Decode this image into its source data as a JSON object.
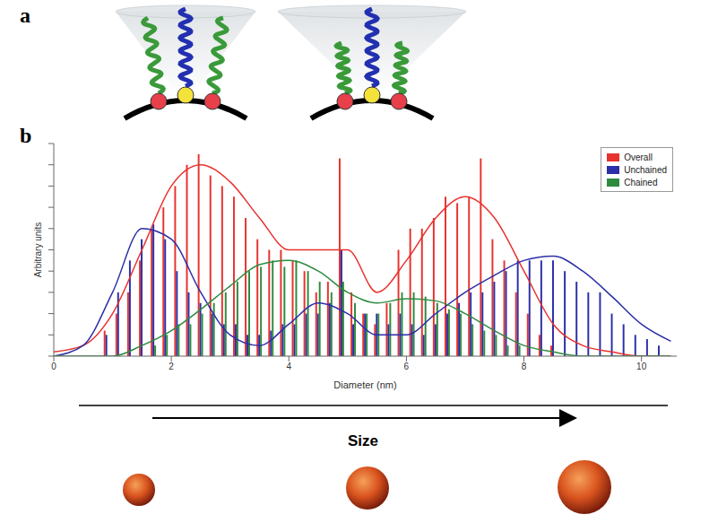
{
  "chart_data": {
    "type": "bar",
    "x_label": "Diameter (nm)",
    "y_label": "Arbitrary units",
    "x": [
      0.9,
      1.1,
      1.3,
      1.5,
      1.7,
      1.9,
      2.1,
      2.3,
      2.5,
      2.7,
      2.9,
      3.1,
      3.3,
      3.5,
      3.7,
      3.9,
      4.1,
      4.3,
      4.5,
      4.7,
      4.9,
      5.1,
      5.3,
      5.5,
      5.7,
      5.9,
      6.1,
      6.3,
      6.5,
      6.7,
      6.9,
      7.1,
      7.3,
      7.5,
      7.7,
      7.9,
      8.1,
      8.3,
      8.5,
      8.7,
      8.9,
      9.1,
      9.3,
      9.5,
      9.7,
      9.9,
      10.1,
      10.3
    ],
    "fit_x": [
      0,
      0.5,
      1,
      1.5,
      2,
      2.5,
      3,
      3.5,
      4,
      4.5,
      5,
      5.5,
      6,
      6.5,
      7,
      7.5,
      8,
      8.5,
      9,
      9.5,
      10,
      10.5
    ],
    "series": [
      {
        "name": "Overall",
        "color": "#e8322e",
        "values": [
          0.12,
          0.2,
          0.3,
          0.45,
          0.6,
          0.7,
          0.8,
          0.9,
          0.95,
          0.85,
          0.8,
          0.75,
          0.65,
          0.55,
          0.5,
          0.5,
          0.45,
          0.4,
          0.3,
          0.35,
          0.93,
          0.3,
          0.2,
          0.15,
          0.25,
          0.5,
          0.6,
          0.6,
          0.65,
          0.75,
          0.72,
          0.75,
          0.93,
          0.55,
          0.45,
          0.3,
          0.2,
          0.1,
          0.05,
          0,
          0,
          0,
          0,
          0,
          0,
          0,
          0,
          0
        ],
        "fit": [
          0.02,
          0.05,
          0.2,
          0.5,
          0.8,
          0.9,
          0.82,
          0.65,
          0.5,
          0.5,
          0.5,
          0.3,
          0.45,
          0.65,
          0.75,
          0.65,
          0.4,
          0.15,
          0.05,
          0.02,
          0,
          0
        ]
      },
      {
        "name": "Unchained",
        "color": "#2b2fa8",
        "values": [
          0.1,
          0.3,
          0.45,
          0.55,
          0.62,
          0.55,
          0.4,
          0.3,
          0.25,
          0.2,
          0.15,
          0.15,
          0.1,
          0.1,
          0.12,
          0.15,
          0.15,
          0.2,
          0.2,
          0.25,
          0.5,
          0.15,
          0.2,
          0.2,
          0.15,
          0.2,
          0.15,
          0.1,
          0.15,
          0.2,
          0.25,
          0.3,
          0.3,
          0.35,
          0.4,
          0.45,
          0.45,
          0.45,
          0.45,
          0.4,
          0.35,
          0.3,
          0.3,
          0.2,
          0.15,
          0.1,
          0.08,
          0.05
        ],
        "fit": [
          0,
          0.05,
          0.3,
          0.6,
          0.55,
          0.3,
          0.1,
          0.05,
          0.15,
          0.25,
          0.2,
          0.1,
          0.1,
          0.2,
          0.3,
          0.38,
          0.45,
          0.47,
          0.4,
          0.28,
          0.15,
          0.07
        ]
      },
      {
        "name": "Chained",
        "color": "#2e8b3e",
        "values": [
          0,
          0,
          0,
          0,
          0.05,
          0.1,
          0.15,
          0.15,
          0.2,
          0.25,
          0.3,
          0.35,
          0.4,
          0.42,
          0.45,
          0.42,
          0.45,
          0.4,
          0.35,
          0.3,
          0.35,
          0.25,
          0.2,
          0.2,
          0.25,
          0.3,
          0.3,
          0.28,
          0.25,
          0.22,
          0.2,
          0.15,
          0.12,
          0.1,
          0.05,
          0.05,
          0,
          0,
          0,
          0,
          0,
          0,
          0,
          0,
          0,
          0,
          0,
          0
        ],
        "fit": [
          0,
          0,
          0,
          0.05,
          0.12,
          0.22,
          0.33,
          0.43,
          0.45,
          0.4,
          0.3,
          0.25,
          0.27,
          0.26,
          0.2,
          0.12,
          0.05,
          0.02,
          0,
          0,
          0,
          0
        ]
      }
    ],
    "xlim": [
      0,
      10.6
    ],
    "xticks": [
      0,
      2,
      4,
      6,
      8,
      10
    ],
    "ylim": [
      0,
      1
    ],
    "yticks": [
      0,
      0.1,
      0.2,
      0.3,
      0.4,
      0.5,
      0.6,
      0.7,
      0.8,
      0.9,
      1
    ],
    "tick_labels": "x",
    "grid": false,
    "legend": "upper right"
  },
  "panel_labels": [
    "a",
    "b"
  ],
  "arrow_label": "Size"
}
